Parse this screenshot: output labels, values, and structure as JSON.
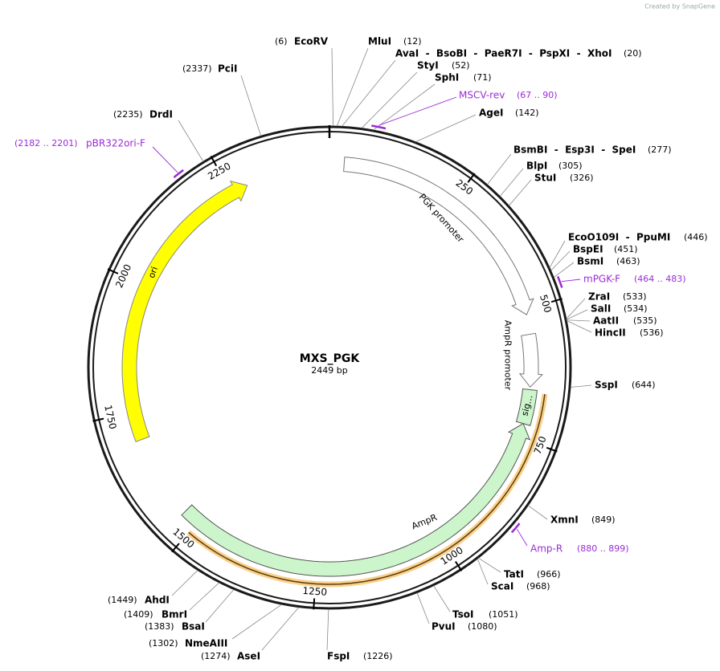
{
  "watermark": "Created by SnapGene",
  "map": {
    "name": "MXS_PGK",
    "length": "2449 bp",
    "ruler": [
      250,
      500,
      750,
      1000,
      1250,
      1500,
      1750,
      2000,
      2250
    ]
  },
  "sites": [
    {
      "name": "EcoRV",
      "position": "(6)"
    },
    {
      "name": "MluI",
      "position": "(12)"
    },
    {
      "name": "AvaI  -  BsoBI  -  PaeR7I  -  PspXI  -  XhoI",
      "position": "(20)"
    },
    {
      "name": "StyI",
      "position": "(52)"
    },
    {
      "name": "SphI",
      "position": "(71)"
    },
    {
      "name": "AgeI",
      "position": "(142)"
    },
    {
      "name": "BsmBI  -  Esp3I  -  SpeI",
      "position": "(277)"
    },
    {
      "name": "BlpI",
      "position": "(305)"
    },
    {
      "name": "StuI",
      "position": "(326)"
    },
    {
      "name": "EcoO109I  -  PpuMI",
      "position": "(446)"
    },
    {
      "name": "BspEI",
      "position": "(451)"
    },
    {
      "name": "BsmI",
      "position": "(463)"
    },
    {
      "name": "ZraI",
      "position": "(533)"
    },
    {
      "name": "SalI",
      "position": "(534)"
    },
    {
      "name": "AatII",
      "position": "(535)"
    },
    {
      "name": "HincII",
      "position": "(536)"
    },
    {
      "name": "SspI",
      "position": "(644)"
    },
    {
      "name": "XmnI",
      "position": "(849)"
    },
    {
      "name": "TatI",
      "position": "(966)"
    },
    {
      "name": "ScaI",
      "position": "(968)"
    },
    {
      "name": "TsoI",
      "position": "(1051)"
    },
    {
      "name": "PvuI",
      "position": "(1080)"
    },
    {
      "name": "FspI",
      "position": "(1226)"
    },
    {
      "name": "AseI",
      "position": "(1274)"
    },
    {
      "name": "NmeAIII",
      "position": "(1302)"
    },
    {
      "name": "BsaI",
      "position": "(1383)"
    },
    {
      "name": "BmrI",
      "position": "(1409)"
    },
    {
      "name": "AhdI",
      "position": "(1449)"
    },
    {
      "name": "DrdI",
      "position": "(2235)"
    },
    {
      "name": "PciI",
      "position": "(2337)"
    }
  ],
  "primers": [
    {
      "name": "MSCV-rev",
      "range": "(67 .. 90)"
    },
    {
      "name": "mPGK-F",
      "range": "(464 .. 483)"
    },
    {
      "name": "Amp-R",
      "range": "(880 .. 899)"
    },
    {
      "name": "pBR322ori-F",
      "range": "(2182 .. 2201)"
    }
  ],
  "features": [
    {
      "name": "PGK promoter"
    },
    {
      "name": "AmpR promoter"
    },
    {
      "name": "sig…"
    },
    {
      "name": "AmpR"
    },
    {
      "name": "ori"
    }
  ]
}
